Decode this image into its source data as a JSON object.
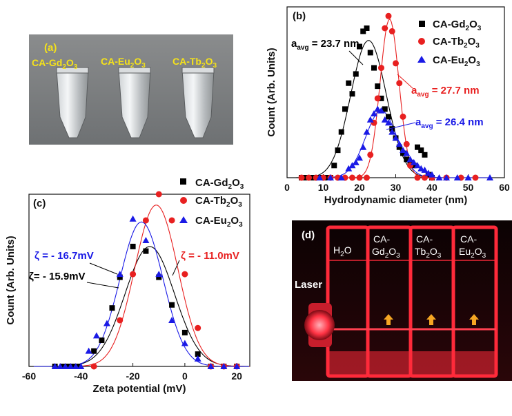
{
  "figure": {
    "panel_a": {
      "label": "(a)",
      "labels": [
        "CA-Gd2O3",
        "CA-Eu2O3",
        "CA-Tb2O3"
      ],
      "colors": {
        "text": "#f5e21a",
        "background": "#7b7e80"
      }
    },
    "panel_d": {
      "label": "(d)",
      "laser_label": "Laser",
      "cuvette_labels": [
        "H2O",
        "CA-Gd2O3",
        "CA-Tb2O3",
        "CA-Eu2O3"
      ],
      "colors": {
        "glow": "#ff2a3a",
        "arrow": "#f5a623",
        "background": "#1a0508"
      }
    }
  },
  "chart_data": [
    {
      "panel": "(b)",
      "type": "scatter",
      "xlabel": "Hydrodynamic diameter (nm)",
      "ylabel": "Count (Arb. Units)",
      "xlim": [
        0,
        60
      ],
      "xticks": [
        0,
        10,
        20,
        30,
        40,
        50,
        60
      ],
      "ylim": [
        0,
        1.12
      ],
      "legend_position": "top-right",
      "series": [
        {
          "name": "CA-Gd2O3",
          "label_main": "CA-Gd",
          "label_sub1": "2",
          "label_mid": "O",
          "label_sub2": "3",
          "color": "#000000",
          "marker": "square",
          "x": [
            4,
            5,
            6,
            7,
            8,
            9,
            10,
            11,
            12,
            13,
            14,
            15,
            16,
            17,
            18,
            19,
            20,
            21,
            22,
            23,
            24,
            25,
            26,
            27,
            28,
            29,
            30,
            31,
            32,
            33,
            34,
            35,
            36,
            37,
            38,
            39,
            40
          ],
          "y": [
            0,
            0,
            0,
            0,
            0,
            0,
            0,
            0,
            0,
            0.08,
            0.18,
            0.3,
            0.45,
            0.62,
            0.55,
            0.68,
            0.86,
            0.96,
            0.98,
            0.82,
            0.72,
            0.6,
            0.52,
            0.45,
            0.4,
            0.32,
            0.26,
            0.2,
            0.16,
            0.12,
            0.1,
            0.08,
            0.2,
            0.18,
            0.15,
            0.02,
            0
          ],
          "fit_center": 22.5,
          "fit_sigma": 4.9,
          "fit_amp": 0.9
        },
        {
          "name": "CA-Tb2O3",
          "label_main": "CA-Tb",
          "label_sub1": "2",
          "label_mid": "O",
          "label_sub2": "3",
          "color": "#e82020",
          "marker": "circle",
          "x": [
            4,
            6,
            8,
            10,
            12,
            14,
            16,
            18,
            20,
            22,
            23,
            24,
            25,
            26,
            27,
            28,
            29,
            30,
            31,
            32,
            33,
            34,
            36,
            38,
            40,
            44,
            48,
            52
          ],
          "y": [
            0,
            0,
            0,
            0,
            0,
            0,
            0,
            0,
            0,
            0,
            0.15,
            0.36,
            0.52,
            0.72,
            0.98,
            1.06,
            0.96,
            0.75,
            0.62,
            0.4,
            0.22,
            0.08,
            0,
            0,
            0,
            0,
            0,
            0
          ],
          "fit_center": 28.3,
          "fit_sigma": 2.6,
          "fit_amp": 1.04
        },
        {
          "name": "CA-Eu2O3",
          "label_main": "CA-Eu",
          "label_sub1": "2",
          "label_mid": "O",
          "label_sub2": "3",
          "color": "#1a1ae6",
          "marker": "triangle",
          "x": [
            9,
            12,
            15,
            17,
            18,
            19,
            20,
            21,
            22,
            23,
            24,
            25,
            26,
            27,
            28,
            29,
            30,
            31,
            32,
            33,
            34,
            35,
            36,
            37,
            38,
            39,
            40,
            42,
            44,
            47,
            50,
            56
          ],
          "y": [
            0,
            0,
            0,
            0.06,
            0.08,
            0.1,
            0.13,
            0.2,
            0.3,
            0.38,
            0.42,
            0.45,
            0.44,
            0.38,
            0.36,
            0.3,
            0.26,
            0.22,
            0.18,
            0.16,
            0.12,
            0.1,
            0.08,
            0.06,
            0.05,
            0.03,
            0.02,
            0,
            0,
            0,
            0,
            0
          ],
          "fit_center": 26.0,
          "fit_sigma": 4.3,
          "fit_amp": 0.44
        }
      ],
      "annotations": [
        {
          "prefix": "a",
          "sub": "avg",
          "text": " = 23.7 nm",
          "color": "#000000"
        },
        {
          "prefix": "a",
          "sub": "avg",
          "text": " = 27.7 nm",
          "color": "#e82020"
        },
        {
          "prefix": "a",
          "sub": "avg",
          "text": " = 26.4 nm",
          "color": "#1a1ae6"
        }
      ]
    },
    {
      "panel": "(c)",
      "type": "scatter",
      "xlabel": "Zeta potential (mV)",
      "ylabel": "Count (Arb. Units)",
      "xlim": [
        -60,
        25
      ],
      "xticks": [
        -60,
        -40,
        -20,
        0,
        20
      ],
      "ylim": [
        0,
        1.12
      ],
      "legend_position": "top-right",
      "series": [
        {
          "name": "CA-Gd2O3",
          "label_main": "CA-Gd",
          "label_sub1": "2",
          "label_mid": "O",
          "label_sub2": "3",
          "color": "#000000",
          "marker": "square",
          "x": [
            -50,
            -47,
            -45,
            -43,
            -41,
            -35,
            -32,
            -28,
            -25,
            -20,
            -15,
            -10,
            -5,
            0,
            5,
            10,
            15,
            20
          ],
          "y": [
            0,
            0,
            0,
            0,
            0,
            0.1,
            0.17,
            0.38,
            0.58,
            0.78,
            0.75,
            0.58,
            0.4,
            0.22,
            0.08,
            0,
            0,
            0
          ],
          "fit_center": -13.5,
          "fit_sigma": 9.5,
          "fit_amp": 0.78
        },
        {
          "name": "CA-Tb2O3",
          "label_main": "CA-Tb",
          "label_sub1": "2",
          "label_mid": "O",
          "label_sub2": "3",
          "color": "#e82020",
          "marker": "circle",
          "x": [
            -35,
            -25,
            -20,
            -15,
            -10,
            -5,
            0,
            5,
            10,
            15,
            20
          ],
          "y": [
            0,
            0.3,
            0.6,
            0.95,
            1.12,
            0.95,
            0.6,
            0.25,
            0,
            0,
            0
          ],
          "fit_center": -11.0,
          "fit_sigma": 8.3,
          "fit_amp": 1.05
        },
        {
          "name": "CA-Eu2O3",
          "label_main": "CA-Eu",
          "label_sub1": "2",
          "label_mid": "O",
          "label_sub2": "3",
          "color": "#1a1ae6",
          "marker": "triangle",
          "x": [
            -50,
            -48,
            -46,
            -44,
            -42,
            -40,
            -37,
            -34,
            -30,
            -25,
            -20,
            -15,
            -10,
            -5,
            0,
            5,
            10,
            15,
            20
          ],
          "y": [
            0,
            0,
            0,
            0,
            0,
            0,
            0.1,
            0.2,
            0.28,
            0.6,
            0.96,
            0.82,
            0.6,
            0.3,
            0.15,
            0.05,
            0,
            0,
            0
          ],
          "fit_center": -16.7,
          "fit_sigma": 8.3,
          "fit_amp": 0.94
        }
      ],
      "annotations": [
        {
          "prefix": "ζ",
          "text": "= - 16.7mV",
          "color": "#1a1ae6"
        },
        {
          "prefix": "ζ",
          "text": "= - 15.9mV",
          "color": "#000000"
        },
        {
          "prefix": "ζ",
          "text": "= - 11.0mV",
          "color": "#e82020"
        }
      ]
    }
  ]
}
